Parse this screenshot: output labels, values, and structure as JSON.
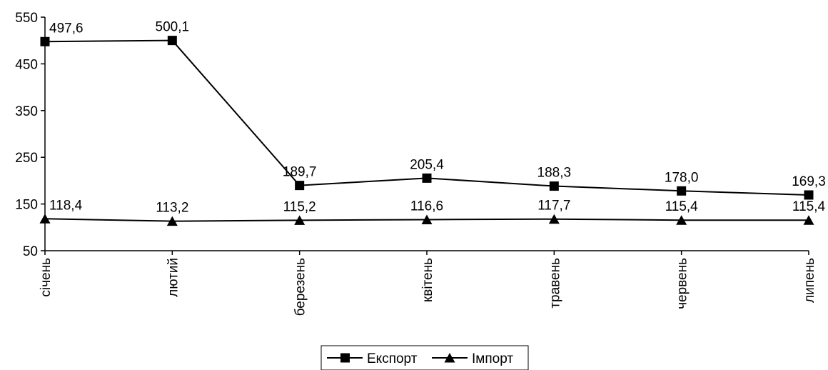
{
  "chart_data": {
    "type": "line",
    "title": "",
    "xlabel": "",
    "ylabel": "",
    "ylim": [
      50,
      550
    ],
    "yticks": [
      50,
      150,
      250,
      350,
      450,
      550
    ],
    "categories": [
      "січень",
      "лютий",
      "березень",
      "квітень",
      "травень",
      "червень",
      "липень"
    ],
    "series": [
      {
        "name": "Експорт",
        "marker": "square",
        "values": [
          497.6,
          500.1,
          189.7,
          205.4,
          188.3,
          178.0,
          169.3
        ],
        "labels": [
          "497,6",
          "500,1",
          "189,7",
          "205,4",
          "188,3",
          "178,0",
          "169,3"
        ]
      },
      {
        "name": "Імпорт",
        "marker": "triangle",
        "values": [
          118.4,
          113.2,
          115.2,
          116.6,
          117.7,
          115.4,
          115.4
        ],
        "labels": [
          "118,4",
          "113,2",
          "115,2",
          "116,6",
          "117,7",
          "115,4",
          "115,4"
        ]
      }
    ],
    "legend_position": "bottom-center",
    "grid": false
  }
}
